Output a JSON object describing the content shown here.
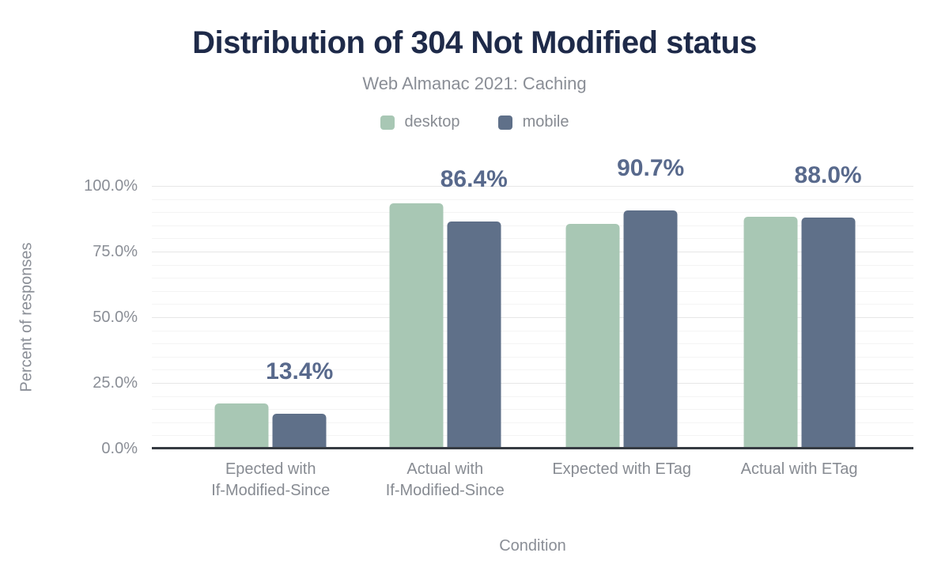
{
  "chart": {
    "title": "Distribution of 304 Not Modified status",
    "subtitle": "Web Almanac 2021: Caching"
  },
  "chart_data": {
    "type": "bar",
    "title": "Distribution of 304 Not Modified status",
    "subtitle": "Web Almanac 2021: Caching",
    "xlabel": "Condition",
    "ylabel": "Percent of responses",
    "categories": [
      "Epected with If-Modified-Since",
      "Actual with If-Modified-Since",
      "Expected with ETag",
      "Actual with ETag"
    ],
    "category_lines": [
      [
        "Epected with",
        "If-Modified-Since"
      ],
      [
        "Actual with",
        "If-Modified-Since"
      ],
      [
        "Expected with ETag"
      ],
      [
        "Actual with ETag"
      ]
    ],
    "series": [
      {
        "name": "desktop",
        "color": "#a8c7b4",
        "values": [
          17.3,
          93.4,
          85.4,
          88.4
        ]
      },
      {
        "name": "mobile",
        "color": "#5f7089",
        "values": [
          13.4,
          86.4,
          90.7,
          88.0
        ]
      }
    ],
    "annotations": {
      "series": "mobile",
      "labels": [
        "13.4%",
        "86.4%",
        "90.7%",
        "88.0%"
      ]
    },
    "y_ticks": [
      {
        "label": "0.0%",
        "value": 0
      },
      {
        "label": "25.0%",
        "value": 25
      },
      {
        "label": "50.0%",
        "value": 50
      },
      {
        "label": "75.0%",
        "value": 75
      },
      {
        "label": "100.0%",
        "value": 100
      }
    ],
    "ylim": [
      0,
      100
    ],
    "grid": {
      "major_step": 25,
      "minor_step": 5,
      "on": true
    },
    "legend_position": "top",
    "group_centers_pct": [
      15.6,
      38.5,
      61.7,
      85.0
    ]
  },
  "colors": {
    "title": "#1e2a49",
    "subtitle_text": "#8a8e96",
    "axis_text": "#878b92",
    "annotation_text": "#58698c",
    "axis_line": "#363b42",
    "grid_major": "#e6e6e6",
    "grid_minor": "#f4f4f4",
    "desktop": "#a8c7b4",
    "mobile": "#5f7089"
  }
}
